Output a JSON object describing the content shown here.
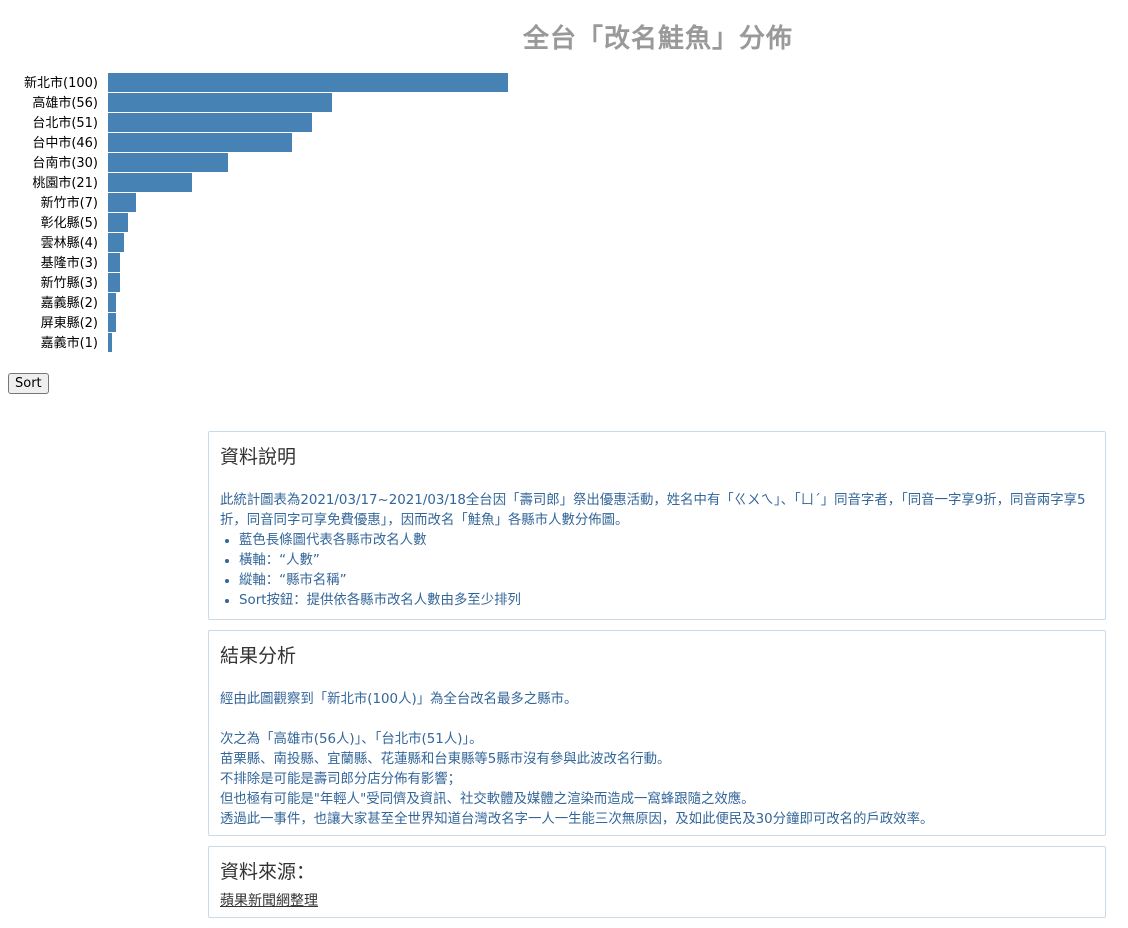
{
  "chart_data": {
    "type": "bar",
    "orientation": "horizontal",
    "title": "全台「改名鮭魚」分佈",
    "categories": [
      "新北市(100)",
      "高雄市(56)",
      "台北市(51)",
      "台中市(46)",
      "台南市(30)",
      "桃園市(21)",
      "新竹市(7)",
      "彰化縣(5)",
      "雲林縣(4)",
      "基隆市(3)",
      "新竹縣(3)",
      "嘉義縣(2)",
      "屏東縣(2)",
      "嘉義市(1)"
    ],
    "values": [
      100,
      56,
      51,
      46,
      30,
      21,
      7,
      5,
      4,
      3,
      3,
      2,
      2,
      1
    ],
    "xlim": [
      0,
      100
    ],
    "color": "#4682b4",
    "grid": false
  },
  "controls": {
    "sort_label": "Sort"
  },
  "description": {
    "heading": "資料說明",
    "intro": "此統計圖表為2021/03/17~2021/03/18全台因「壽司郎」祭出優惠活動，姓名中有「ㄍㄨㄟ」、「ㄩˊ」同音字者，「同音一字享9折，同音兩字享5折，同音同字可享免費優惠」，因而改名「鮭魚」各縣市人數分佈圖。",
    "bullets": [
      "藍色長條圖代表各縣市改名人數",
      "橫軸：“人數”",
      "縱軸：“縣市名稱”",
      "Sort按鈕：提供依各縣市改名人數由多至少排列"
    ]
  },
  "analysis": {
    "heading": "結果分析",
    "line1": "經由此圖觀察到「新北市(100人)」為全台改名最多之縣市。",
    "lines": [
      "次之為「高雄市(56人)」、「台北市(51人)」。",
      "苗栗縣、南投縣、宜蘭縣、花蓮縣和台東縣等5縣市沒有參與此波改名行動。",
      "不排除是可能是壽司郎分店分佈有影響；",
      "但也極有可能是\"年輕人\"受同儕及資訊、社交軟體及媒體之渲染而造成一窩蜂跟隨之效應。",
      "透過此一事件，也讓大家甚至全世界知道台灣改名字一人一生能三次無原因，及如此便民及30分鐘即可改名的戶政效率。"
    ]
  },
  "source": {
    "heading": "資料來源：",
    "link_text": "蘋果新聞網整理"
  },
  "colors": {
    "bar": "#4682b4",
    "text_blue": "#336699",
    "title_gray": "#999999",
    "panel_border": "#c9dbe8"
  }
}
